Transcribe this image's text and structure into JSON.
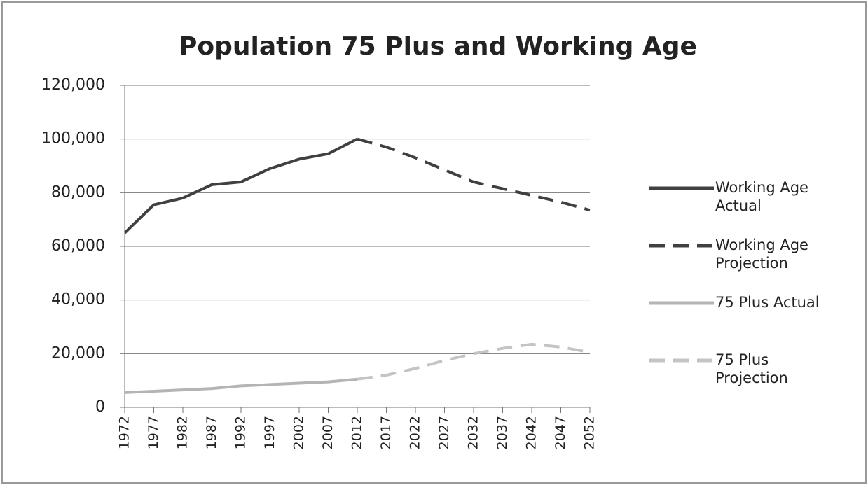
{
  "chart_data": {
    "type": "line",
    "title": "Population 75 Plus and Working Age",
    "x": [
      1972,
      1977,
      1982,
      1987,
      1992,
      1997,
      2002,
      2007,
      2012,
      2017,
      2022,
      2027,
      2032,
      2037,
      2042,
      2047,
      2052
    ],
    "series": [
      {
        "name": "Working Age Actual",
        "color": "#404040",
        "dash": false,
        "values": [
          65000,
          75500,
          78000,
          83000,
          84000,
          89000,
          92500,
          94500,
          100000,
          null,
          null,
          null,
          null,
          null,
          null,
          null,
          null
        ]
      },
      {
        "name": "Working Age Projection",
        "color": "#404040",
        "dash": true,
        "values": [
          null,
          null,
          null,
          null,
          null,
          null,
          null,
          null,
          100000,
          97000,
          93000,
          88500,
          84000,
          81500,
          79000,
          76500,
          73500
        ]
      },
      {
        "name": "75 Plus Actual",
        "color": "#b4b4b4",
        "dash": false,
        "values": [
          5500,
          6000,
          6500,
          7000,
          8000,
          8500,
          9000,
          9500,
          10500,
          null,
          null,
          null,
          null,
          null,
          null,
          null,
          null
        ]
      },
      {
        "name": "75 Plus Projection",
        "color": "#c4c4c4",
        "dash": true,
        "values": [
          null,
          null,
          null,
          null,
          null,
          null,
          null,
          null,
          10500,
          12000,
          14500,
          17500,
          20000,
          22000,
          23500,
          22500,
          20500
        ]
      }
    ],
    "xlim": [
      1972,
      2052
    ],
    "xticks": [
      1972,
      1977,
      1982,
      1987,
      1992,
      1997,
      2002,
      2007,
      2012,
      2017,
      2022,
      2027,
      2032,
      2037,
      2042,
      2047,
      2052
    ],
    "ylim": [
      0,
      120000
    ],
    "yticks": [
      0,
      {
        "value": 20000,
        "label": "20,000"
      },
      {
        "value": 40000,
        "label": "40,000"
      },
      {
        "value": 60000,
        "label": "60,000"
      },
      {
        "value": 80000,
        "label": "80,000"
      },
      {
        "value": 100000,
        "label": "100,000"
      },
      {
        "value": 120000,
        "label": "120,000"
      }
    ],
    "grid": true,
    "legend": "right"
  }
}
